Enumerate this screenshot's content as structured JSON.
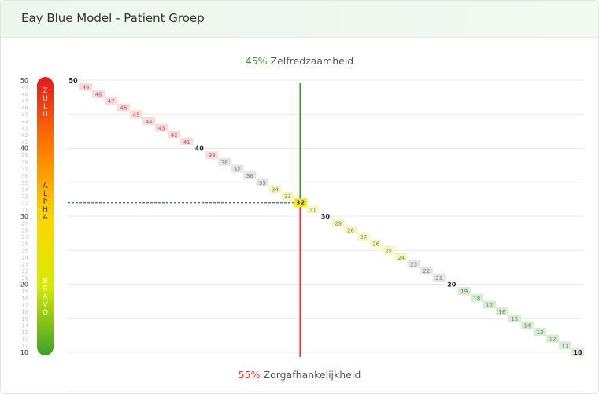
{
  "header": {
    "title": "Eay Blue Model - Patient Groep"
  },
  "top_label": {
    "pct": "45%",
    "text": " Zelfredzaamheid",
    "color": "#2e9e1f"
  },
  "bottom_label": {
    "pct": "55%",
    "text": " Zorgafhankelijkheid",
    "color": "#e53935"
  },
  "scale_bar": {
    "zones": [
      {
        "name": "ZULU",
        "letters": [
          "Z",
          "U",
          "L",
          "U"
        ]
      },
      {
        "name": "ALPHA",
        "letters": [
          "A",
          "L",
          "P",
          "H",
          "A"
        ]
      },
      {
        "name": "BRAVO",
        "letters": [
          "B",
          "R",
          "A",
          "V",
          "O"
        ]
      }
    ],
    "gradient": [
      "#e31a1c",
      "#ff7a00",
      "#ffd500",
      "#d7ea00",
      "#3ba12a"
    ],
    "ticks": [
      50,
      49,
      48,
      47,
      46,
      45,
      44,
      43,
      42,
      41,
      40,
      39,
      38,
      37,
      36,
      35,
      34,
      33,
      32,
      31,
      30,
      29,
      28,
      27,
      26,
      25,
      24,
      23,
      22,
      21,
      20,
      19,
      18,
      17,
      16,
      15,
      14,
      13,
      12,
      11,
      10
    ],
    "major_ticks": [
      50,
      40,
      30,
      20,
      10
    ]
  },
  "chart_data": {
    "type": "scatter",
    "x_labels": [
      50,
      49,
      48,
      47,
      46,
      45,
      44,
      43,
      42,
      41,
      40,
      39,
      38,
      37,
      36,
      35,
      34,
      33,
      32,
      31,
      30,
      29,
      28,
      27,
      26,
      25,
      24,
      23,
      22,
      21,
      20,
      19,
      18,
      17,
      16,
      15,
      14,
      13,
      12,
      11,
      10
    ],
    "y_labels": [
      50,
      49,
      48,
      47,
      46,
      45,
      44,
      43,
      42,
      41,
      40,
      39,
      38,
      37,
      36,
      35,
      34,
      33,
      32,
      31,
      30,
      29,
      28,
      27,
      26,
      25,
      24,
      23,
      22,
      21,
      20,
      19,
      18,
      17,
      16,
      15,
      14,
      13,
      12,
      11,
      10
    ],
    "ylim": [
      10,
      50
    ],
    "grid": true,
    "highlight": 32,
    "zelfredzaamheid_pct": 45,
    "zorgafhankelijkheid_pct": 55,
    "zone_colors": {
      "zulu": "#f9dcdb",
      "alpha_upper": "#e4e4e4",
      "alpha_mid": "#f5f6c8",
      "alpha_lower": "#e4e4e4",
      "bravo": "#d8ecd3",
      "highlight": "#f7e90f"
    }
  }
}
